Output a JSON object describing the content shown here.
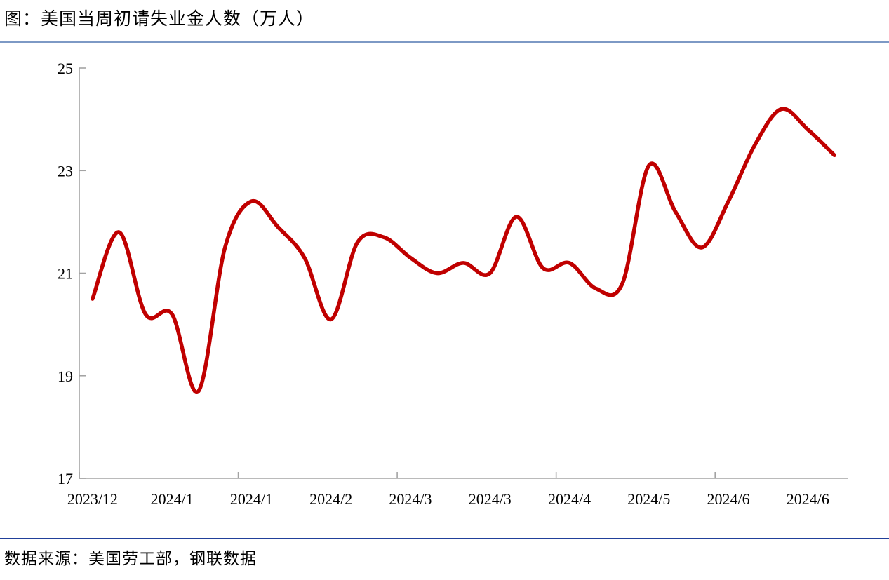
{
  "page": {
    "title": "图：美国当周初请失业金人数（万人）",
    "source": "数据来源：美国劳工部，钢联数据"
  },
  "colors": {
    "line": "#C00000",
    "axis": "#A3A3A3",
    "top_rule": "#7D99C5",
    "bottom_rule": "#21409A"
  },
  "chart_data": {
    "type": "line",
    "title": "美国当周初请失业金人数（万人）",
    "unit": "万人",
    "smooth": true,
    "grid": false,
    "legend": "none",
    "ylim": [
      17,
      25
    ],
    "y_ticks": [
      17,
      19,
      21,
      23,
      25
    ],
    "x_tick_labels": [
      "2023/12",
      "2024/1",
      "2024/1",
      "2024/2",
      "2024/3",
      "2024/3",
      "2024/4",
      "2024/5",
      "2024/6",
      "2024/6"
    ],
    "x_label_every": 3,
    "x_axis_tick_every": 6,
    "series": [
      {
        "name": "美国当周初请失业金人数（万人）",
        "values": [
          20.5,
          21.8,
          20.2,
          20.2,
          18.7,
          21.5,
          22.4,
          21.9,
          21.3,
          20.1,
          21.6,
          21.7,
          21.3,
          21.0,
          21.2,
          21.0,
          22.1,
          21.1,
          21.2,
          20.7,
          20.8,
          23.1,
          22.2,
          21.5,
          22.4,
          23.5,
          24.2,
          23.8,
          23.3
        ]
      }
    ]
  }
}
